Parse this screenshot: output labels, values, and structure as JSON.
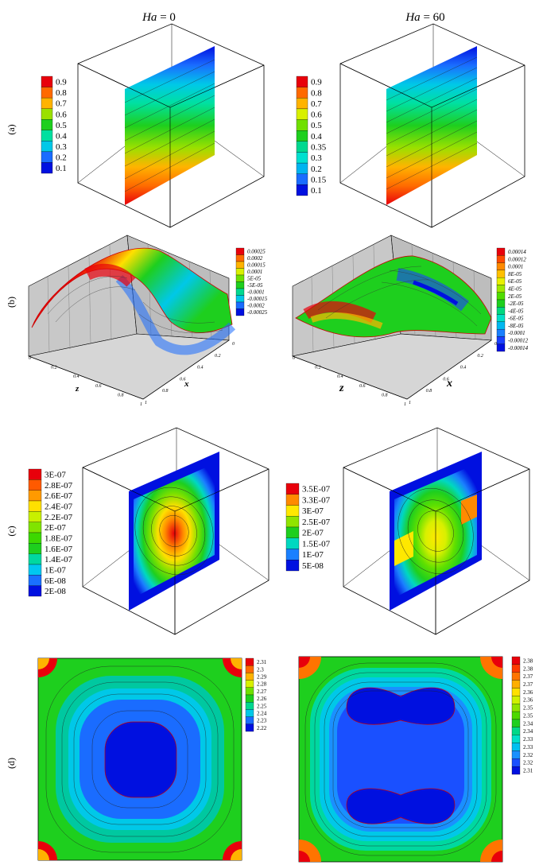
{
  "figure": {
    "column_titles": {
      "left": {
        "italic": "Ha",
        "rest": " = 0"
      },
      "right": {
        "italic": "Ha",
        "rest": " = 60"
      }
    },
    "row_labels": [
      "(a)",
      "(b)",
      "(c)",
      "(d)"
    ],
    "axis_labels": {
      "z": "z",
      "x": "x"
    },
    "axis_ticks": [
      "0",
      "0.2",
      "0.4",
      "0.6",
      "0.8",
      "1"
    ]
  },
  "chart_data": [
    {
      "id": "a-left",
      "type": "heatmap",
      "title": "Ha = 0",
      "row": "(a)",
      "legend": [
        "0.9",
        "0.8",
        "0.7",
        "0.6",
        "0.5",
        "0.4",
        "0.3",
        "0.2",
        "0.1"
      ],
      "colors": [
        "#e8000b",
        "#ff6a00",
        "#ffb300",
        "#9be000",
        "#1ecf1e",
        "#00e0a0",
        "#00c8e8",
        "#1a6cff",
        "#0010e0"
      ]
    },
    {
      "id": "a-right",
      "type": "heatmap",
      "title": "Ha = 60",
      "row": "(a)",
      "legend": [
        "0.9",
        "0.8",
        "0.7",
        "0.6",
        "0.5",
        "0.4",
        "0.35",
        "0.3",
        "0.2",
        "0.15",
        "0.1"
      ],
      "colors": [
        "#e8000b",
        "#ff6a00",
        "#ffb300",
        "#d8f000",
        "#70e000",
        "#1ecf1e",
        "#00d890",
        "#00e0d0",
        "#00b4f0",
        "#1a6cff",
        "#0010e0"
      ]
    },
    {
      "id": "b-left",
      "type": "heatmap",
      "row": "(b)",
      "legend": [
        "0.00025",
        "0.0002",
        "0.00015",
        "0.0001",
        "5E-05",
        "-5E-05",
        "-0.0001",
        "-0.00015",
        "-0.0002",
        "-0.00025"
      ],
      "colors": [
        "#e8000b",
        "#ff6a00",
        "#ffb300",
        "#d8f000",
        "#70e000",
        "#1ecf1e",
        "#00d890",
        "#00c8e8",
        "#1a6cff",
        "#0010e0"
      ]
    },
    {
      "id": "b-right",
      "type": "heatmap",
      "row": "(b)",
      "legend": [
        "0.00014",
        "0.00012",
        "0.0001",
        "8E-05",
        "6E-05",
        "4E-05",
        "2E-05",
        "-2E-05",
        "-4E-05",
        "-6E-05",
        "-8E-05",
        "-0.0001",
        "-0.00012",
        "-0.00014"
      ],
      "colors": [
        "#e8000b",
        "#ff4a00",
        "#ff8a00",
        "#ffc000",
        "#e8f000",
        "#a0e800",
        "#50dc00",
        "#1ecf1e",
        "#00d880",
        "#00e0c8",
        "#00b8f0",
        "#1a80ff",
        "#1a40ff",
        "#0010e0"
      ]
    },
    {
      "id": "c-left",
      "type": "heatmap",
      "row": "(c)",
      "legend": [
        "3E-07",
        "2.8E-07",
        "2.6E-07",
        "2.4E-07",
        "2.2E-07",
        "2E-07",
        "1.8E-07",
        "1.6E-07",
        "1.4E-07",
        "1E-07",
        "6E-08",
        "2E-08"
      ],
      "colors": [
        "#e8000b",
        "#ff5a00",
        "#ff9a00",
        "#ffe000",
        "#c8f000",
        "#80e400",
        "#3cd800",
        "#1ecf1e",
        "#00d8a0",
        "#00c8f0",
        "#1a70ff",
        "#0010e0"
      ]
    },
    {
      "id": "c-right",
      "type": "heatmap",
      "row": "(c)",
      "legend": [
        "3.5E-07",
        "3.3E-07",
        "3E-07",
        "2.5E-07",
        "2E-07",
        "1.5E-07",
        "1E-07",
        "5E-08"
      ],
      "colors": [
        "#e8000b",
        "#ff8a00",
        "#ffe800",
        "#90e400",
        "#1ecf1e",
        "#00d8c0",
        "#1a80ff",
        "#0010e0"
      ]
    },
    {
      "id": "d-left",
      "type": "heatmap",
      "row": "(d)",
      "legend": [
        "2.31",
        "2.3",
        "2.29",
        "2.28",
        "2.27",
        "2.26",
        "2.25",
        "2.24",
        "2.23",
        "2.22"
      ],
      "colors": [
        "#e8000b",
        "#ff6a00",
        "#ffb300",
        "#d8f000",
        "#70e000",
        "#1ecf1e",
        "#00d890",
        "#00c8e8",
        "#1a6cff",
        "#0010e0"
      ]
    },
    {
      "id": "d-right",
      "type": "heatmap",
      "row": "(d)",
      "legend": [
        "2.38",
        "2.38",
        "2.37",
        "2.37",
        "2.36",
        "2.36",
        "2.35",
        "2.35",
        "2.34",
        "2.34",
        "2.33",
        "2.33",
        "2.32",
        "2.32",
        "2.31"
      ],
      "colors": [
        "#e8000b",
        "#ff3a00",
        "#ff7400",
        "#ffae00",
        "#ffe000",
        "#d0f000",
        "#90e400",
        "#4cd800",
        "#1ecf1e",
        "#00d888",
        "#00e0c8",
        "#00c0f0",
        "#1a90ff",
        "#1a50ff",
        "#0010e0"
      ]
    }
  ]
}
